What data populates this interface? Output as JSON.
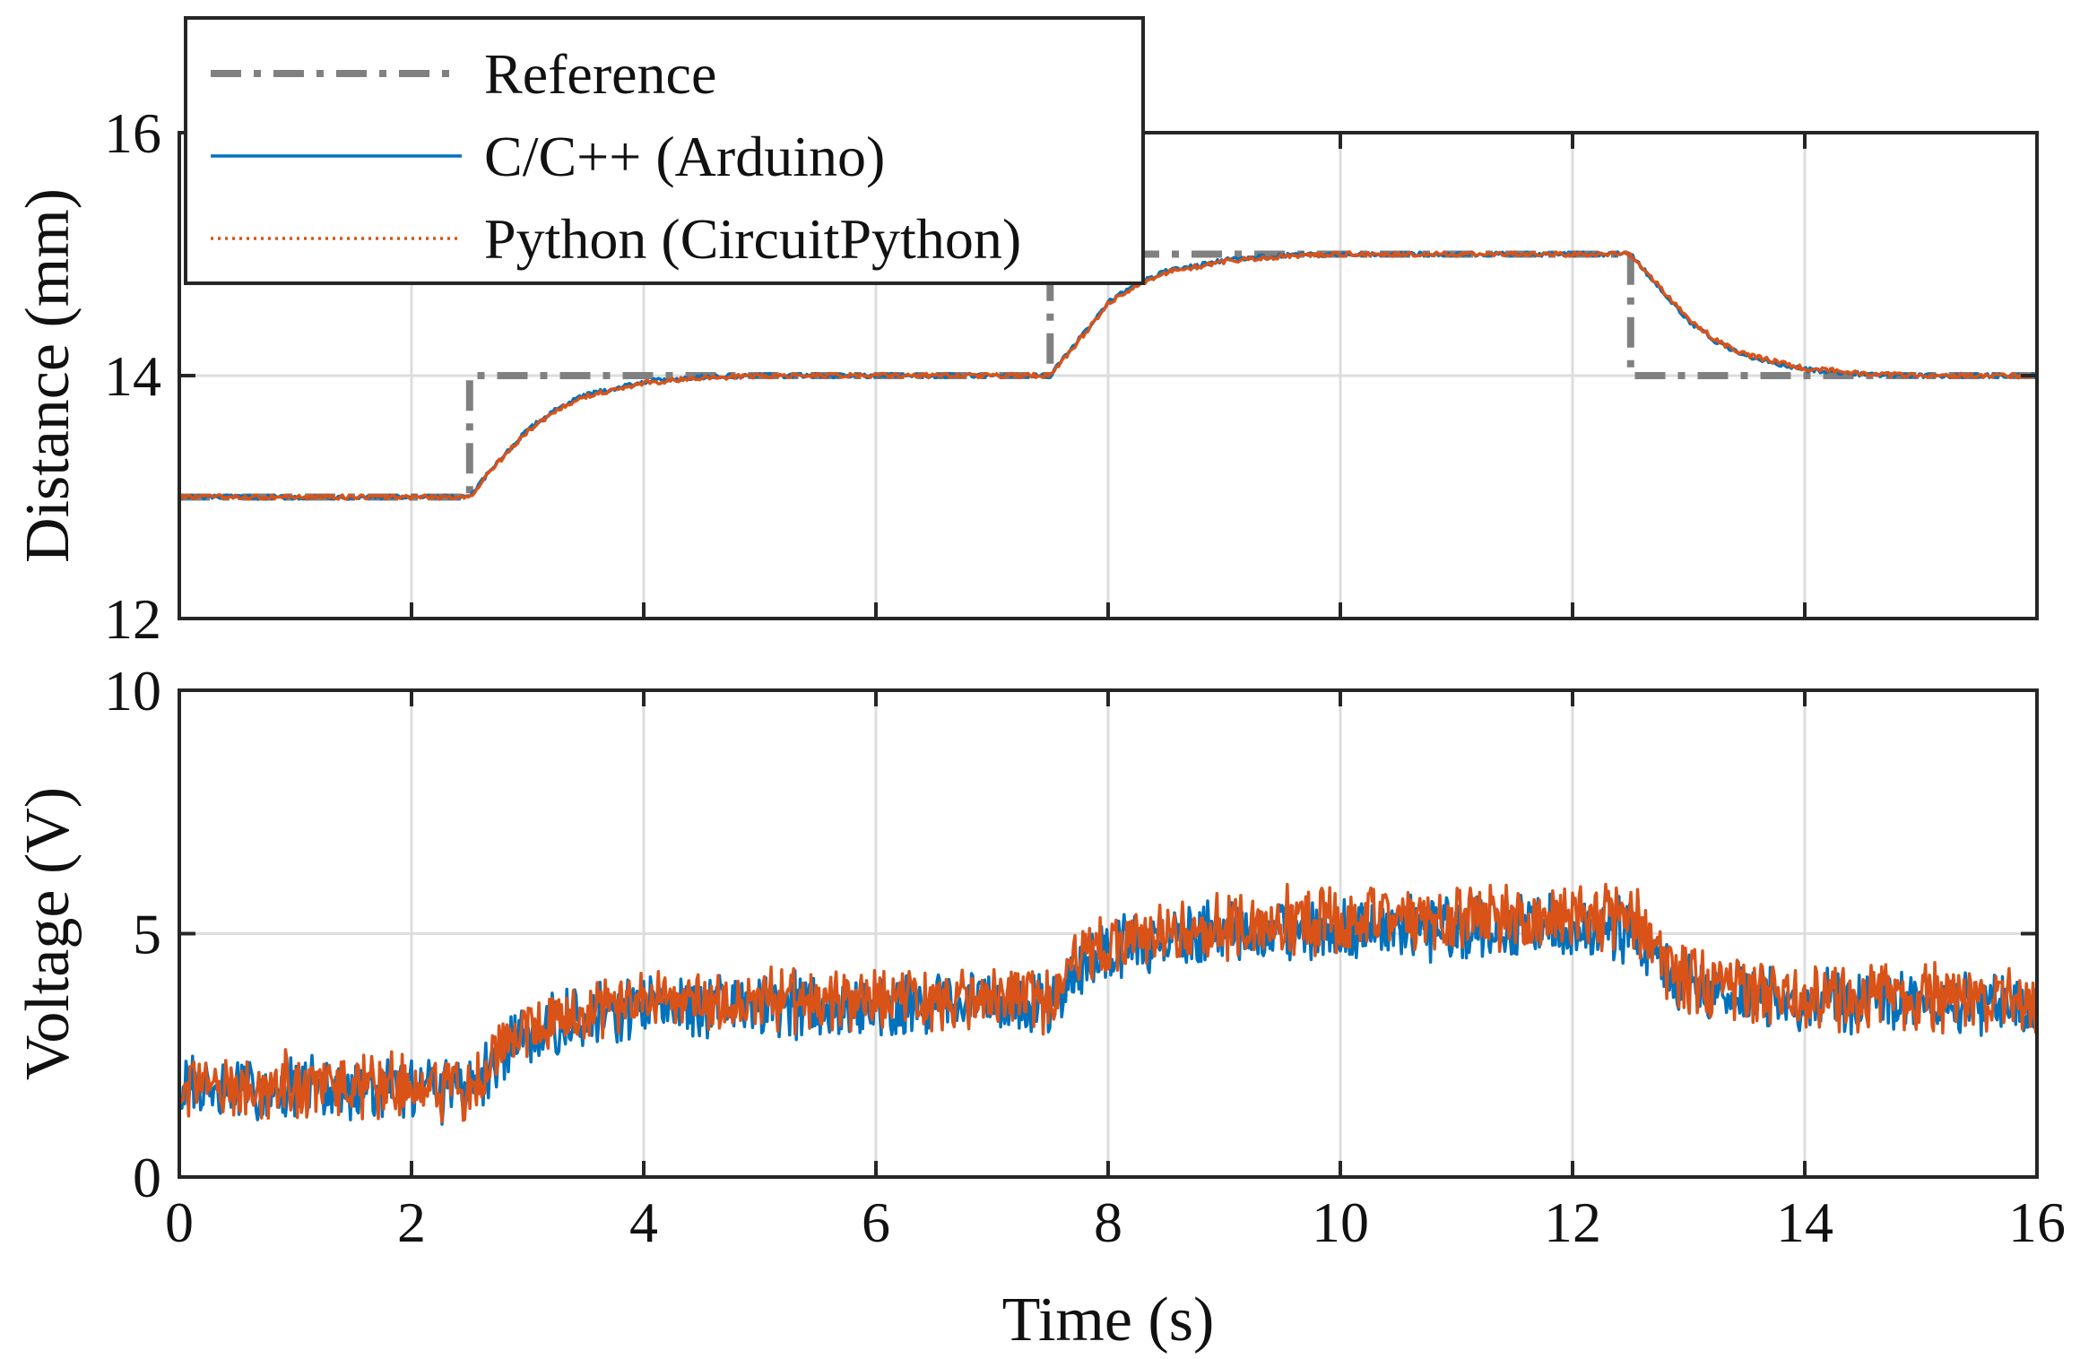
{
  "colors": {
    "reference": "#808080",
    "arduino": "#0072BD",
    "python": "#D95319",
    "grid": "#dddddd",
    "axis": "#262626"
  },
  "chart_data": [
    {
      "type": "line",
      "panel": "top",
      "title": "",
      "xlabel": "",
      "ylabel": "Distance (mm)",
      "xlim": [
        0,
        16
      ],
      "ylim": [
        12,
        16
      ],
      "xticks": [
        0,
        2,
        4,
        6,
        8,
        10,
        12,
        14,
        16
      ],
      "yticks": [
        12,
        14,
        16
      ],
      "grid": true,
      "legend_position": "top-left",
      "series": [
        {
          "name": "Reference",
          "style": "dash-dot",
          "color": "#808080",
          "x": [
            0,
            2.5,
            2.5,
            7.5,
            7.5,
            12.5,
            12.5,
            16
          ],
          "y": [
            13,
            13,
            14,
            14,
            15,
            15,
            14,
            14
          ]
        },
        {
          "name": "C/C++ (Arduino)",
          "style": "solid",
          "color": "#0072BD",
          "x": [
            0,
            2.5,
            2.75,
            3.0,
            3.25,
            3.5,
            4.0,
            4.5,
            5.0,
            7.5,
            7.75,
            8.0,
            8.25,
            8.5,
            9.0,
            9.5,
            10.0,
            12.5,
            12.75,
            13.0,
            13.25,
            13.5,
            14.0,
            14.5,
            15.0,
            16.0
          ],
          "y": [
            13.0,
            13.0,
            13.3,
            13.55,
            13.73,
            13.84,
            13.95,
            13.99,
            14.0,
            14.0,
            14.3,
            14.6,
            14.76,
            14.86,
            14.95,
            14.99,
            15.0,
            15.0,
            14.72,
            14.45,
            14.27,
            14.16,
            14.05,
            14.01,
            14.0,
            14.0
          ]
        },
        {
          "name": "Python (CircuitPython)",
          "style": "dotted",
          "color": "#D95319",
          "x": [
            0,
            2.5,
            2.75,
            3.0,
            3.25,
            3.5,
            4.0,
            4.5,
            5.0,
            7.5,
            7.75,
            8.0,
            8.25,
            8.5,
            9.0,
            9.5,
            10.0,
            12.5,
            12.75,
            13.0,
            13.25,
            13.5,
            14.0,
            14.5,
            15.0,
            16.0
          ],
          "y": [
            13.0,
            13.0,
            13.29,
            13.54,
            13.72,
            13.83,
            13.94,
            13.98,
            14.0,
            14.0,
            14.29,
            14.59,
            14.75,
            14.85,
            14.94,
            14.98,
            15.0,
            15.0,
            14.73,
            14.47,
            14.28,
            14.17,
            14.06,
            14.02,
            14.0,
            14.0
          ]
        }
      ]
    },
    {
      "type": "line",
      "panel": "bottom",
      "title": "",
      "xlabel": "Time (s)",
      "ylabel": "Voltage (V)",
      "xlim": [
        0,
        16
      ],
      "ylim": [
        0,
        10
      ],
      "xticks": [
        0,
        2,
        4,
        6,
        8,
        10,
        12,
        14,
        16
      ],
      "yticks": [
        0,
        5,
        10
      ],
      "grid": true,
      "series": [
        {
          "name": "C/C++ (Arduino)",
          "style": "solid",
          "color": "#0072BD",
          "x": [
            0,
            2.5,
            2.75,
            3.0,
            3.5,
            4.0,
            5.0,
            7.5,
            7.75,
            8.0,
            8.5,
            9.0,
            10.0,
            12.5,
            12.75,
            13.0,
            13.5,
            14.0,
            16.0
          ],
          "y": [
            1.8,
            1.8,
            2.5,
            2.95,
            3.3,
            3.5,
            3.55,
            3.55,
            4.3,
            4.7,
            4.9,
            5.05,
            5.1,
            5.1,
            4.3,
            3.95,
            3.7,
            3.6,
            3.55
          ]
        },
        {
          "name": "Python (CircuitPython)",
          "style": "dotted",
          "color": "#D95319",
          "x": [
            0,
            2.5,
            2.75,
            3.0,
            3.5,
            4.0,
            5.0,
            7.5,
            7.75,
            8.0,
            8.5,
            9.0,
            10.0,
            12.5,
            12.75,
            13.0,
            13.5,
            14.0,
            16.0
          ],
          "y": [
            1.85,
            1.85,
            2.6,
            3.05,
            3.4,
            3.6,
            3.62,
            3.62,
            4.45,
            4.85,
            5.05,
            5.2,
            5.3,
            5.35,
            4.45,
            4.05,
            3.8,
            3.68,
            3.62
          ]
        }
      ]
    }
  ],
  "legend": {
    "items": [
      {
        "label": "Reference"
      },
      {
        "label": "C/C++ (Arduino)"
      },
      {
        "label": "Python (CircuitPython)"
      }
    ]
  }
}
